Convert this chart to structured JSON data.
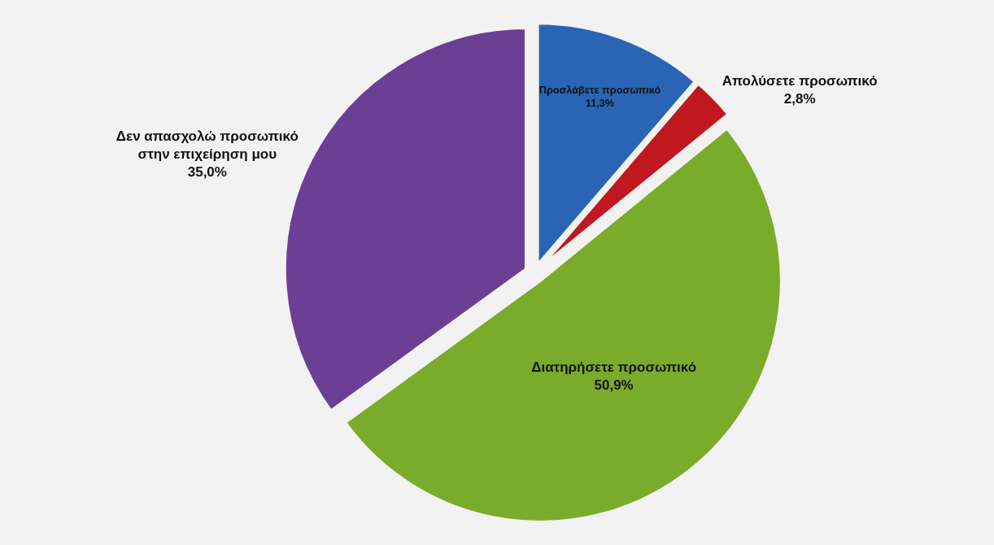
{
  "chart_data": {
    "type": "pie",
    "categories": [
      "Προσλάβετε προσωπικό",
      "Απολύσετε προσωπικό",
      "Διατηρήσετε προσωπικό",
      "Δεν απασχολώ προσωπικό στην επιχείρηση μου"
    ],
    "values": [
      11.3,
      2.8,
      50.9,
      35.0
    ],
    "value_labels": [
      "11,3%",
      "2,8%",
      "50,9%",
      "35,0%"
    ],
    "colors": [
      "#2a64b4",
      "#c0181e",
      "#7aab2a",
      "#6a3f94"
    ],
    "legend": false
  }
}
